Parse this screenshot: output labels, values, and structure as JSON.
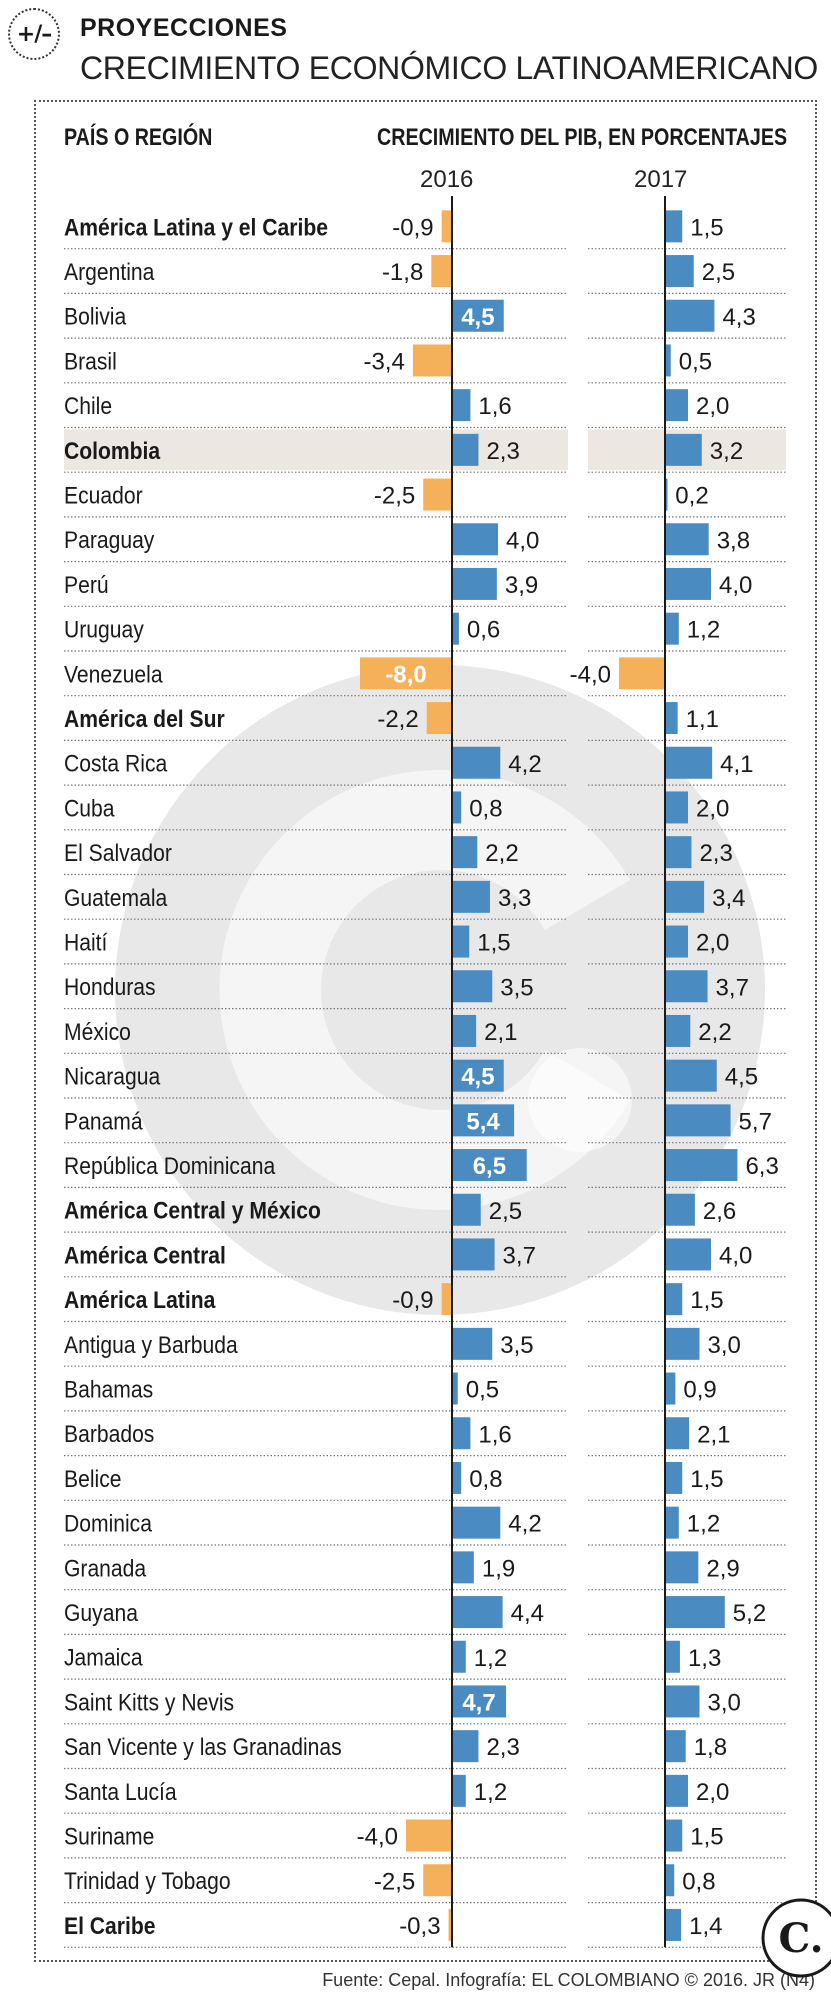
{
  "header": {
    "logo_text": "+/–",
    "kicker": "PROYECCIONES",
    "title": "CRECIMIENTO ECONÓMICO LATINOAMERICANO"
  },
  "columns": {
    "country_header": "PAÍS O REGIÓN",
    "pib_header": "CRECIMIENTO DEL PIB, EN PORCENTAJES",
    "year_2016": "2016",
    "year_2017": "2017"
  },
  "colors": {
    "positive": "#4a8cc2",
    "negative": "#f5b15a",
    "highlight_row": "#ece8e1",
    "text": "#1a1a1a",
    "watermark": "#e8e8e8"
  },
  "chart_data": {
    "type": "bar",
    "title": "CRECIMIENTO ECONÓMICO LATINOAMERICANO",
    "subtitle": "CRECIMIENTO DEL PIB, EN PORCENTAJES",
    "orientation": "horizontal",
    "categories": [
      "América Latina y el Caribe",
      "Argentina",
      "Bolivia",
      "Brasil",
      "Chile",
      "Colombia",
      "Ecuador",
      "Paraguay",
      "Perú",
      "Uruguay",
      "Venezuela",
      "América del Sur",
      "Costa Rica",
      "Cuba",
      "El Salvador",
      "Guatemala",
      "Haití",
      "Honduras",
      "México",
      "Nicaragua",
      "Panamá",
      "República Dominicana",
      "América Central y México",
      "América Central",
      "América Latina",
      "Antigua y Barbuda",
      "Bahamas",
      "Barbados",
      "Belice",
      "Dominica",
      "Granada",
      "Guyana",
      "Jamaica",
      "Saint Kitts y Nevis",
      "San Vicente y las Granadinas",
      "Santa Lucía",
      "Suriname",
      "Trinidad y Tobago",
      "El Caribe"
    ],
    "bold_categories": [
      "América Latina y el Caribe",
      "Colombia",
      "América del Sur",
      "América Central y México",
      "América Central",
      "América Latina",
      "El Caribe"
    ],
    "highlighted_category": "Colombia",
    "series": [
      {
        "name": "2016",
        "values": [
          -0.9,
          -1.8,
          4.5,
          -3.4,
          1.6,
          2.3,
          -2.5,
          4.0,
          3.9,
          0.6,
          -8.0,
          -2.2,
          4.2,
          0.8,
          2.2,
          3.3,
          1.5,
          3.5,
          2.1,
          4.5,
          5.4,
          6.5,
          2.5,
          3.7,
          -0.9,
          3.5,
          0.5,
          1.6,
          0.8,
          4.2,
          1.9,
          4.4,
          1.2,
          4.7,
          2.3,
          1.2,
          -4.0,
          -2.5,
          -0.3
        ],
        "labels": [
          "-0,9",
          "-1,8",
          "4,5",
          "-3,4",
          "1,6",
          "2,3",
          "-2,5",
          "4,0",
          "3,9",
          "0,6",
          "-8,0",
          "-2,2",
          "4,2",
          "0,8",
          "2,2",
          "3,3",
          "1,5",
          "3,5",
          "2,1",
          "4,5",
          "5,4",
          "6,5",
          "2,5",
          "3,7",
          "-0,9",
          "3,5",
          "0,5",
          "1,6",
          "0,8",
          "4,2",
          "1,9",
          "4,4",
          "1,2",
          "4,7",
          "2,3",
          "1,2",
          "-4,0",
          "-2,5",
          "-0,3"
        ]
      },
      {
        "name": "2017",
        "values": [
          1.5,
          2.5,
          4.3,
          0.5,
          2.0,
          3.2,
          0.2,
          3.8,
          4.0,
          1.2,
          -4.0,
          1.1,
          4.1,
          2.0,
          2.3,
          3.4,
          2.0,
          3.7,
          2.2,
          4.5,
          5.7,
          6.3,
          2.6,
          4.0,
          1.5,
          3.0,
          0.9,
          2.1,
          1.5,
          1.2,
          2.9,
          5.2,
          1.3,
          3.0,
          1.8,
          2.0,
          1.5,
          0.8,
          1.4
        ],
        "labels": [
          "1,5",
          "2,5",
          "4,3",
          "0,5",
          "2,0",
          "3,2",
          "0,2",
          "3,8",
          "4,0",
          "1,2",
          "-4,0",
          "1,1",
          "4,1",
          "2,0",
          "2,3",
          "3,4",
          "2,0",
          "3,7",
          "2,2",
          "4,5",
          "5,7",
          "6,3",
          "2,6",
          "4,0",
          "1,5",
          "3,0",
          "0,9",
          "2,1",
          "1,5",
          "1,2",
          "2,9",
          "5,2",
          "1,3",
          "3,0",
          "1,8",
          "2,0",
          "1,5",
          "0,8",
          "1,4"
        ]
      }
    ],
    "xlabel": "",
    "ylabel": "",
    "legend": "none"
  },
  "footer": {
    "source": "Fuente: Cepal. Infografía: EL COLOMBIANO © 2016. JR (N4)",
    "logo_letter": "C."
  }
}
